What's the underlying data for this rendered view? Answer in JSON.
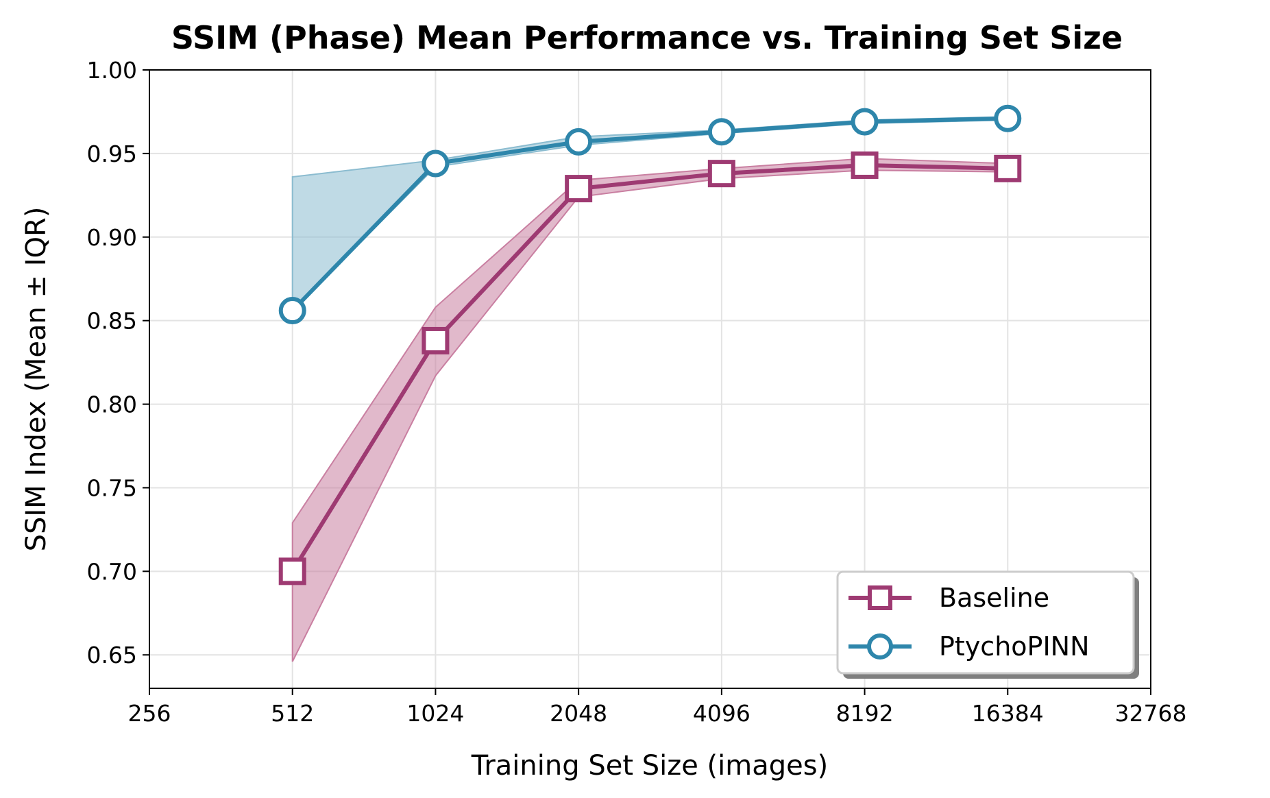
{
  "chart_data": {
    "type": "line",
    "title": "SSIM (Phase) Mean Performance vs. Training Set Size",
    "xlabel": "Training Set Size (images)",
    "ylabel": "SSIM Index (Mean ± IQR)",
    "x_scale": "log2",
    "xlim": [
      256,
      32768
    ],
    "ylim": [
      0.63,
      1.0
    ],
    "x_ticks": [
      256,
      512,
      1024,
      2048,
      4096,
      8192,
      16384,
      32768
    ],
    "x_tick_labels": [
      "256",
      "512",
      "1024",
      "2048",
      "4096",
      "8192",
      "16384",
      "32768"
    ],
    "y_ticks": [
      0.65,
      0.7,
      0.75,
      0.8,
      0.85,
      0.9,
      0.95,
      1.0
    ],
    "y_tick_labels": [
      "0.65",
      "0.70",
      "0.75",
      "0.80",
      "0.85",
      "0.90",
      "0.95",
      "1.00"
    ],
    "grid": true,
    "legend_position": "lower-right",
    "series": [
      {
        "name": "Baseline",
        "color": "#9e3a72",
        "fill_color": "#c97fa1",
        "marker": "square",
        "x": [
          512,
          1024,
          2048,
          4096,
          8192,
          16384
        ],
        "values": [
          0.7,
          0.838,
          0.929,
          0.938,
          0.943,
          0.941
        ],
        "lower": [
          0.646,
          0.817,
          0.924,
          0.935,
          0.94,
          0.939
        ],
        "upper": [
          0.729,
          0.858,
          0.934,
          0.941,
          0.947,
          0.944
        ]
      },
      {
        "name": "PtychoPINN",
        "color": "#2e86ab",
        "fill_color": "#8bbcd0",
        "marker": "circle",
        "x": [
          512,
          1024,
          2048,
          4096,
          8192,
          16384
        ],
        "values": [
          0.856,
          0.944,
          0.957,
          0.963,
          0.969,
          0.971
        ],
        "lower": [
          0.856,
          0.942,
          0.955,
          0.962,
          0.968,
          0.97
        ],
        "upper": [
          0.936,
          0.946,
          0.96,
          0.964,
          0.97,
          0.972
        ]
      }
    ]
  }
}
